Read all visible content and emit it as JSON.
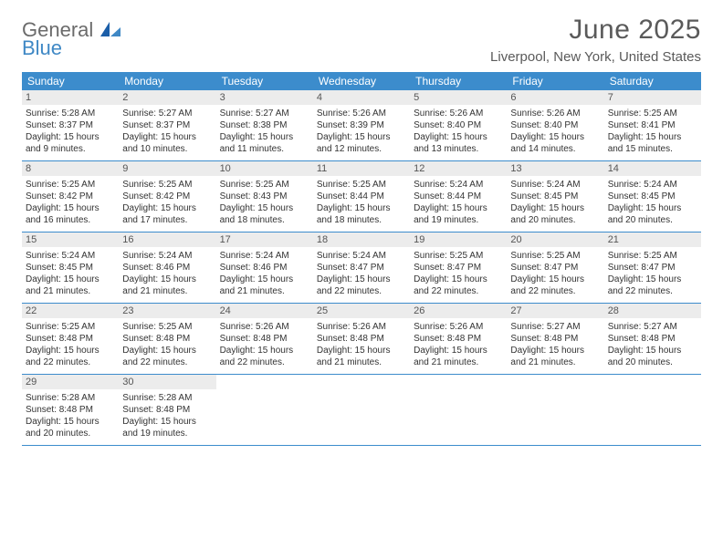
{
  "brand": {
    "general": "General",
    "blue": "Blue"
  },
  "title": "June 2025",
  "location": "Liverpool, New York, United States",
  "colors": {
    "header_bg": "#3c8ccc",
    "header_text": "#ffffff",
    "daynum_bg": "#ececec",
    "rule": "#3c8ccc",
    "body_text": "#333333",
    "title_text": "#5a5a5a",
    "logo_gray": "#6b6b6b",
    "logo_blue": "#3f88c5"
  },
  "typography": {
    "title_fontsize": 30,
    "location_fontsize": 15,
    "dayhead_fontsize": 12,
    "daynum_fontsize": 11,
    "body_fontsize": 10
  },
  "day_headers": [
    "Sunday",
    "Monday",
    "Tuesday",
    "Wednesday",
    "Thursday",
    "Friday",
    "Saturday"
  ],
  "weeks": [
    [
      {
        "n": "1",
        "sunrise": "Sunrise: 5:28 AM",
        "sunset": "Sunset: 8:37 PM",
        "d1": "Daylight: 15 hours",
        "d2": "and 9 minutes."
      },
      {
        "n": "2",
        "sunrise": "Sunrise: 5:27 AM",
        "sunset": "Sunset: 8:37 PM",
        "d1": "Daylight: 15 hours",
        "d2": "and 10 minutes."
      },
      {
        "n": "3",
        "sunrise": "Sunrise: 5:27 AM",
        "sunset": "Sunset: 8:38 PM",
        "d1": "Daylight: 15 hours",
        "d2": "and 11 minutes."
      },
      {
        "n": "4",
        "sunrise": "Sunrise: 5:26 AM",
        "sunset": "Sunset: 8:39 PM",
        "d1": "Daylight: 15 hours",
        "d2": "and 12 minutes."
      },
      {
        "n": "5",
        "sunrise": "Sunrise: 5:26 AM",
        "sunset": "Sunset: 8:40 PM",
        "d1": "Daylight: 15 hours",
        "d2": "and 13 minutes."
      },
      {
        "n": "6",
        "sunrise": "Sunrise: 5:26 AM",
        "sunset": "Sunset: 8:40 PM",
        "d1": "Daylight: 15 hours",
        "d2": "and 14 minutes."
      },
      {
        "n": "7",
        "sunrise": "Sunrise: 5:25 AM",
        "sunset": "Sunset: 8:41 PM",
        "d1": "Daylight: 15 hours",
        "d2": "and 15 minutes."
      }
    ],
    [
      {
        "n": "8",
        "sunrise": "Sunrise: 5:25 AM",
        "sunset": "Sunset: 8:42 PM",
        "d1": "Daylight: 15 hours",
        "d2": "and 16 minutes."
      },
      {
        "n": "9",
        "sunrise": "Sunrise: 5:25 AM",
        "sunset": "Sunset: 8:42 PM",
        "d1": "Daylight: 15 hours",
        "d2": "and 17 minutes."
      },
      {
        "n": "10",
        "sunrise": "Sunrise: 5:25 AM",
        "sunset": "Sunset: 8:43 PM",
        "d1": "Daylight: 15 hours",
        "d2": "and 18 minutes."
      },
      {
        "n": "11",
        "sunrise": "Sunrise: 5:25 AM",
        "sunset": "Sunset: 8:44 PM",
        "d1": "Daylight: 15 hours",
        "d2": "and 18 minutes."
      },
      {
        "n": "12",
        "sunrise": "Sunrise: 5:24 AM",
        "sunset": "Sunset: 8:44 PM",
        "d1": "Daylight: 15 hours",
        "d2": "and 19 minutes."
      },
      {
        "n": "13",
        "sunrise": "Sunrise: 5:24 AM",
        "sunset": "Sunset: 8:45 PM",
        "d1": "Daylight: 15 hours",
        "d2": "and 20 minutes."
      },
      {
        "n": "14",
        "sunrise": "Sunrise: 5:24 AM",
        "sunset": "Sunset: 8:45 PM",
        "d1": "Daylight: 15 hours",
        "d2": "and 20 minutes."
      }
    ],
    [
      {
        "n": "15",
        "sunrise": "Sunrise: 5:24 AM",
        "sunset": "Sunset: 8:45 PM",
        "d1": "Daylight: 15 hours",
        "d2": "and 21 minutes."
      },
      {
        "n": "16",
        "sunrise": "Sunrise: 5:24 AM",
        "sunset": "Sunset: 8:46 PM",
        "d1": "Daylight: 15 hours",
        "d2": "and 21 minutes."
      },
      {
        "n": "17",
        "sunrise": "Sunrise: 5:24 AM",
        "sunset": "Sunset: 8:46 PM",
        "d1": "Daylight: 15 hours",
        "d2": "and 21 minutes."
      },
      {
        "n": "18",
        "sunrise": "Sunrise: 5:24 AM",
        "sunset": "Sunset: 8:47 PM",
        "d1": "Daylight: 15 hours",
        "d2": "and 22 minutes."
      },
      {
        "n": "19",
        "sunrise": "Sunrise: 5:25 AM",
        "sunset": "Sunset: 8:47 PM",
        "d1": "Daylight: 15 hours",
        "d2": "and 22 minutes."
      },
      {
        "n": "20",
        "sunrise": "Sunrise: 5:25 AM",
        "sunset": "Sunset: 8:47 PM",
        "d1": "Daylight: 15 hours",
        "d2": "and 22 minutes."
      },
      {
        "n": "21",
        "sunrise": "Sunrise: 5:25 AM",
        "sunset": "Sunset: 8:47 PM",
        "d1": "Daylight: 15 hours",
        "d2": "and 22 minutes."
      }
    ],
    [
      {
        "n": "22",
        "sunrise": "Sunrise: 5:25 AM",
        "sunset": "Sunset: 8:48 PM",
        "d1": "Daylight: 15 hours",
        "d2": "and 22 minutes."
      },
      {
        "n": "23",
        "sunrise": "Sunrise: 5:25 AM",
        "sunset": "Sunset: 8:48 PM",
        "d1": "Daylight: 15 hours",
        "d2": "and 22 minutes."
      },
      {
        "n": "24",
        "sunrise": "Sunrise: 5:26 AM",
        "sunset": "Sunset: 8:48 PM",
        "d1": "Daylight: 15 hours",
        "d2": "and 22 minutes."
      },
      {
        "n": "25",
        "sunrise": "Sunrise: 5:26 AM",
        "sunset": "Sunset: 8:48 PM",
        "d1": "Daylight: 15 hours",
        "d2": "and 21 minutes."
      },
      {
        "n": "26",
        "sunrise": "Sunrise: 5:26 AM",
        "sunset": "Sunset: 8:48 PM",
        "d1": "Daylight: 15 hours",
        "d2": "and 21 minutes."
      },
      {
        "n": "27",
        "sunrise": "Sunrise: 5:27 AM",
        "sunset": "Sunset: 8:48 PM",
        "d1": "Daylight: 15 hours",
        "d2": "and 21 minutes."
      },
      {
        "n": "28",
        "sunrise": "Sunrise: 5:27 AM",
        "sunset": "Sunset: 8:48 PM",
        "d1": "Daylight: 15 hours",
        "d2": "and 20 minutes."
      }
    ],
    [
      {
        "n": "29",
        "sunrise": "Sunrise: 5:28 AM",
        "sunset": "Sunset: 8:48 PM",
        "d1": "Daylight: 15 hours",
        "d2": "and 20 minutes."
      },
      {
        "n": "30",
        "sunrise": "Sunrise: 5:28 AM",
        "sunset": "Sunset: 8:48 PM",
        "d1": "Daylight: 15 hours",
        "d2": "and 19 minutes."
      },
      null,
      null,
      null,
      null,
      null
    ]
  ]
}
